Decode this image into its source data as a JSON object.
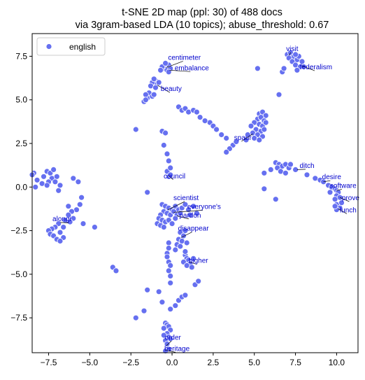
{
  "chart_data": {
    "type": "scatter",
    "title": "t-SNE 2D map (ppl: 30) of 488 docs",
    "subtitle": "via 3gram-based LDA (10 topics); abuse_threshold: 0.67",
    "xlabel": "",
    "ylabel": "",
    "xlim": [
      -8.5,
      11.3
    ],
    "ylim": [
      -9.5,
      8.8
    ],
    "xticks": [
      -7.5,
      -5.0,
      -2.5,
      0.0,
      2.5,
      5.0,
      7.5,
      10.0
    ],
    "yticks": [
      -7.5,
      -5.0,
      -2.5,
      0.0,
      2.5,
      5.0,
      7.5
    ],
    "xtick_labels": [
      "−7.5",
      "−5.0",
      "−2.5",
      "0.0",
      "2.5",
      "5.0",
      "7.5",
      "10.0"
    ],
    "ytick_labels": [
      "−7.5",
      "−5.0",
      "−2.5",
      "0.0",
      "2.5",
      "5.0",
      "7.5"
    ],
    "grid": false,
    "legend": {
      "position": "top-left",
      "entries": [
        "english"
      ]
    },
    "series": [
      {
        "name": "english",
        "color": "#6670f0",
        "points": [
          [
            -0.4,
            6.9
          ],
          [
            -0.2,
            7.0
          ],
          [
            -0.5,
            6.8
          ],
          [
            -0.3,
            6.7
          ],
          [
            -0.6,
            6.9
          ],
          [
            -0.1,
            6.8
          ],
          [
            -0.4,
            7.1
          ],
          [
            -0.7,
            6.7
          ],
          [
            -0.2,
            6.6
          ],
          [
            -1.0,
            6.1
          ],
          [
            -1.2,
            6.0
          ],
          [
            -0.9,
            5.9
          ],
          [
            -1.1,
            6.2
          ],
          [
            -0.8,
            6.0
          ],
          [
            -1.3,
            5.8
          ],
          [
            -1.0,
            5.7
          ],
          [
            -1.4,
            5.4
          ],
          [
            -1.5,
            5.1
          ],
          [
            -1.6,
            5.3
          ],
          [
            -1.2,
            5.2
          ],
          [
            -1.7,
            4.9
          ],
          [
            -1.6,
            5.0
          ],
          [
            -1.1,
            5.3
          ],
          [
            7.0,
            7.6
          ],
          [
            7.2,
            7.7
          ],
          [
            7.4,
            7.5
          ],
          [
            7.1,
            7.4
          ],
          [
            7.6,
            7.3
          ],
          [
            7.3,
            7.2
          ],
          [
            7.7,
            7.5
          ],
          [
            7.5,
            7.6
          ],
          [
            7.9,
            7.2
          ],
          [
            7.5,
            7.0
          ],
          [
            7.8,
            6.9
          ],
          [
            7.6,
            6.7
          ],
          [
            8.0,
            6.9
          ],
          [
            6.7,
            6.6
          ],
          [
            6.8,
            6.8
          ],
          [
            5.2,
            6.8
          ],
          [
            6.5,
            5.3
          ],
          [
            5.3,
            4.2
          ],
          [
            5.5,
            4.3
          ],
          [
            5.7,
            4.1
          ],
          [
            5.2,
            3.9
          ],
          [
            5.4,
            4.0
          ],
          [
            5.6,
            3.8
          ],
          [
            5.0,
            3.7
          ],
          [
            5.3,
            3.6
          ],
          [
            5.5,
            3.5
          ],
          [
            4.8,
            3.5
          ],
          [
            5.1,
            3.3
          ],
          [
            5.4,
            3.2
          ],
          [
            4.9,
            3.1
          ],
          [
            5.2,
            3.0
          ],
          [
            5.5,
            2.9
          ],
          [
            4.6,
            3.0
          ],
          [
            5.0,
            2.8
          ],
          [
            4.5,
            2.7
          ],
          [
            5.3,
            2.7
          ],
          [
            5.7,
            3.7
          ],
          [
            5.6,
            3.3
          ],
          [
            0.4,
            4.6
          ],
          [
            0.6,
            4.4
          ],
          [
            0.8,
            4.5
          ],
          [
            1.0,
            4.3
          ],
          [
            1.3,
            4.4
          ],
          [
            1.5,
            4.3
          ],
          [
            1.7,
            4.0
          ],
          [
            2.3,
            3.7
          ],
          [
            2.5,
            3.5
          ],
          [
            2.7,
            3.3
          ],
          [
            3.0,
            3.0
          ],
          [
            3.3,
            2.8
          ],
          [
            3.7,
            2.4
          ],
          [
            3.5,
            2.2
          ],
          [
            3.3,
            2.0
          ],
          [
            3.9,
            2.6
          ],
          [
            2.0,
            3.8
          ],
          [
            -0.6,
            3.2
          ],
          [
            -0.4,
            3.1
          ],
          [
            -0.5,
            2.4
          ],
          [
            -0.3,
            1.9
          ],
          [
            -0.2,
            1.5
          ],
          [
            -0.3,
            0.9
          ],
          [
            -0.2,
            0.6
          ],
          [
            -0.1,
            0.7
          ],
          [
            -2.2,
            3.3
          ],
          [
            -0.1,
            1.1
          ],
          [
            -1.5,
            -0.3
          ],
          [
            -0.6,
            -1.0
          ],
          [
            -0.4,
            -1.1
          ],
          [
            -0.2,
            -1.2
          ],
          [
            0.0,
            -1.3
          ],
          [
            0.2,
            -1.1
          ],
          [
            0.4,
            -1.3
          ],
          [
            -0.5,
            -1.4
          ],
          [
            -0.3,
            -1.5
          ],
          [
            -0.1,
            -1.6
          ],
          [
            0.1,
            -1.4
          ],
          [
            0.3,
            -1.6
          ],
          [
            0.5,
            -1.5
          ],
          [
            -0.7,
            -1.6
          ],
          [
            -0.8,
            -1.8
          ],
          [
            -0.6,
            -1.9
          ],
          [
            -0.4,
            -2.0
          ],
          [
            -0.2,
            -1.9
          ],
          [
            0.0,
            -2.1
          ],
          [
            0.2,
            -1.8
          ],
          [
            -0.9,
            -2.1
          ],
          [
            -0.7,
            -2.2
          ],
          [
            -0.5,
            -2.3
          ],
          [
            0.6,
            -1.2
          ],
          [
            0.8,
            -1.0
          ],
          [
            1.0,
            -1.3
          ],
          [
            1.3,
            -1.1
          ],
          [
            1.5,
            -1.5
          ],
          [
            1.1,
            -1.6
          ],
          [
            0.5,
            -2.6
          ],
          [
            0.7,
            -2.8
          ],
          [
            0.4,
            -3.0
          ],
          [
            0.6,
            -3.1
          ],
          [
            0.3,
            -3.3
          ],
          [
            0.5,
            -3.4
          ],
          [
            0.2,
            -3.6
          ],
          [
            0.9,
            -3.2
          ],
          [
            0.8,
            -2.5
          ],
          [
            -0.2,
            -3.2
          ],
          [
            -0.2,
            -3.5
          ],
          [
            -0.3,
            -3.8
          ],
          [
            -0.3,
            -4.0
          ],
          [
            -0.2,
            -4.3
          ],
          [
            -0.1,
            -4.5
          ],
          [
            -0.2,
            -4.8
          ],
          [
            -0.1,
            -5.1
          ],
          [
            -0.1,
            -5.5
          ],
          [
            0.8,
            -3.9
          ],
          [
            0.9,
            -4.1
          ],
          [
            1.0,
            -4.2
          ],
          [
            0.7,
            -4.3
          ],
          [
            1.1,
            -4.4
          ],
          [
            0.9,
            -4.5
          ],
          [
            0.8,
            -3.7
          ],
          [
            1.3,
            -4.1
          ],
          [
            1.2,
            -4.6
          ],
          [
            1.4,
            -5.6
          ],
          [
            1.6,
            -5.4
          ],
          [
            -3.6,
            -4.6
          ],
          [
            -3.4,
            -4.8
          ],
          [
            -1.5,
            -5.9
          ],
          [
            -1.7,
            -7.1
          ],
          [
            -2.2,
            -7.5
          ],
          [
            -0.8,
            -6.0
          ],
          [
            -0.6,
            -6.6
          ],
          [
            -0.1,
            -7.0
          ],
          [
            0.2,
            -6.8
          ],
          [
            0.4,
            -6.5
          ],
          [
            0.6,
            -6.3
          ],
          [
            0.8,
            -6.2
          ],
          [
            -0.4,
            -7.8
          ],
          [
            -0.3,
            -7.9
          ],
          [
            -0.2,
            -8.0
          ],
          [
            -0.1,
            -8.2
          ],
          [
            -0.5,
            -8.1
          ],
          [
            -0.3,
            -8.4
          ],
          [
            -0.2,
            -8.6
          ],
          [
            -0.4,
            -8.8
          ],
          [
            -0.3,
            -9.0
          ],
          [
            -0.2,
            -9.3
          ],
          [
            -0.4,
            -9.4
          ],
          [
            -0.5,
            -8.5
          ],
          [
            -0.1,
            -8.7
          ],
          [
            -7.6,
            0.9
          ],
          [
            -7.4,
            0.8
          ],
          [
            -7.2,
            1.0
          ],
          [
            -7.8,
            0.6
          ],
          [
            -7.3,
            0.5
          ],
          [
            -7.5,
            0.3
          ],
          [
            -7.9,
            0.2
          ],
          [
            -7.6,
            0.1
          ],
          [
            -7.0,
            0.6
          ],
          [
            -7.1,
            0.3
          ],
          [
            -6.8,
            0.1
          ],
          [
            -6.9,
            -0.2
          ],
          [
            -8.4,
            0.8
          ],
          [
            -8.2,
            0.4
          ],
          [
            -8.3,
            0.0
          ],
          [
            -8.5,
            0.7
          ],
          [
            -6.0,
            0.5
          ],
          [
            -5.7,
            0.3
          ],
          [
            -5.5,
            -0.6
          ],
          [
            -5.6,
            -1.0
          ],
          [
            -5.8,
            -1.3
          ],
          [
            -6.3,
            -1.1
          ],
          [
            -6.1,
            -1.4
          ],
          [
            -6.3,
            -1.6
          ],
          [
            -6.0,
            -1.8
          ],
          [
            -6.2,
            -2.0
          ],
          [
            -6.5,
            -1.9
          ],
          [
            -6.6,
            -2.3
          ],
          [
            -6.9,
            -2.1
          ],
          [
            -7.1,
            -2.3
          ],
          [
            -7.3,
            -2.4
          ],
          [
            -7.5,
            -2.5
          ],
          [
            -7.4,
            -2.7
          ],
          [
            -7.2,
            -2.8
          ],
          [
            -6.8,
            -2.6
          ],
          [
            -6.6,
            -2.9
          ],
          [
            -7.0,
            -3.0
          ],
          [
            -6.8,
            -3.1
          ],
          [
            -5.4,
            -2.1
          ],
          [
            -4.7,
            -2.3
          ],
          [
            6.3,
            1.4
          ],
          [
            6.5,
            1.3
          ],
          [
            6.7,
            1.2
          ],
          [
            6.4,
            1.1
          ],
          [
            6.9,
            1.3
          ],
          [
            7.1,
            1.1
          ],
          [
            6.6,
            0.9
          ],
          [
            6.9,
            0.8
          ],
          [
            7.5,
            1.0
          ],
          [
            7.2,
            1.3
          ],
          [
            6.0,
            1.0
          ],
          [
            5.6,
            0.8
          ],
          [
            5.6,
            -0.1
          ],
          [
            6.3,
            -0.7
          ],
          [
            8.2,
            0.7
          ],
          [
            8.7,
            0.5
          ],
          [
            9.0,
            0.4
          ],
          [
            9.2,
            0.3
          ],
          [
            9.5,
            0.1
          ],
          [
            9.7,
            0.0
          ],
          [
            9.9,
            -0.1
          ],
          [
            10.0,
            -0.2
          ],
          [
            10.1,
            -0.3
          ],
          [
            9.6,
            -0.3
          ],
          [
            10.0,
            -0.5
          ],
          [
            10.2,
            -0.6
          ],
          [
            9.9,
            -0.7
          ],
          [
            10.0,
            -1.0
          ],
          [
            10.2,
            -1.2
          ],
          [
            10.0,
            -1.3
          ],
          [
            9.9,
            -1.1
          ],
          [
            10.3,
            -0.9
          ]
        ]
      }
    ],
    "annotations": [
      {
        "text": "centimeter",
        "x": 0.75,
        "y": 7.3,
        "point": [
          -0.35,
          6.85
        ]
      },
      {
        "text": "embalance",
        "x": 1.2,
        "y": 6.7,
        "point": [
          -0.15,
          6.7
        ]
      },
      {
        "text": "beauty",
        "x": -0.05,
        "y": 5.5,
        "point": [
          -0.9,
          5.85
        ]
      },
      {
        "text": "visit",
        "x": 7.3,
        "y": 7.8,
        "point": [
          7.1,
          7.55
        ]
      },
      {
        "text": "federalism",
        "x": 8.75,
        "y": 6.75,
        "point": [
          7.9,
          6.95
        ]
      },
      {
        "text": "spaur",
        "x": 4.3,
        "y": 2.7,
        "point": [
          4.9,
          3.05
        ]
      },
      {
        "text": "ditch",
        "x": 8.2,
        "y": 1.1,
        "point": [
          7.6,
          1.0
        ]
      },
      {
        "text": "desire",
        "x": 9.7,
        "y": 0.45,
        "point": [
          9.2,
          0.3
        ]
      },
      {
        "text": "software",
        "x": 10.4,
        "y": -0.05,
        "point": [
          10.0,
          -0.2
        ]
      },
      {
        "text": "prove",
        "x": 10.85,
        "y": -0.75,
        "point": [
          10.2,
          -0.6
        ]
      },
      {
        "text": "lunch",
        "x": 10.7,
        "y": -1.45,
        "point": [
          10.1,
          -1.25
        ]
      },
      {
        "text": "council",
        "x": 0.15,
        "y": 0.5,
        "point": [
          -0.2,
          0.65
        ]
      },
      {
        "text": "scientist",
        "x": 0.85,
        "y": -0.75,
        "point": [
          -0.25,
          -1.3
        ]
      },
      {
        "text": "everyone's",
        "x": 1.95,
        "y": -1.25,
        "point": [
          0.1,
          -1.45
        ]
      },
      {
        "text": "pardon",
        "x": 1.1,
        "y": -1.75,
        "point": [
          0.3,
          -1.65
        ]
      },
      {
        "text": "disappear",
        "x": 1.3,
        "y": -2.5,
        "point": [
          0.55,
          -2.9
        ]
      },
      {
        "text": "higher",
        "x": 1.6,
        "y": -4.35,
        "point": [
          1.05,
          -4.3
        ]
      },
      {
        "text": "alongi",
        "x": -6.7,
        "y": -1.95,
        "point": [
          -6.3,
          -2.05
        ]
      },
      {
        "text": "order",
        "x": 0.05,
        "y": -8.75,
        "point": [
          -0.35,
          -9.1
        ]
      },
      {
        "text": "heritage",
        "x": 0.3,
        "y": -9.4,
        "point": [
          -0.4,
          -9.35
        ]
      }
    ],
    "label_color": "#0000cc"
  }
}
